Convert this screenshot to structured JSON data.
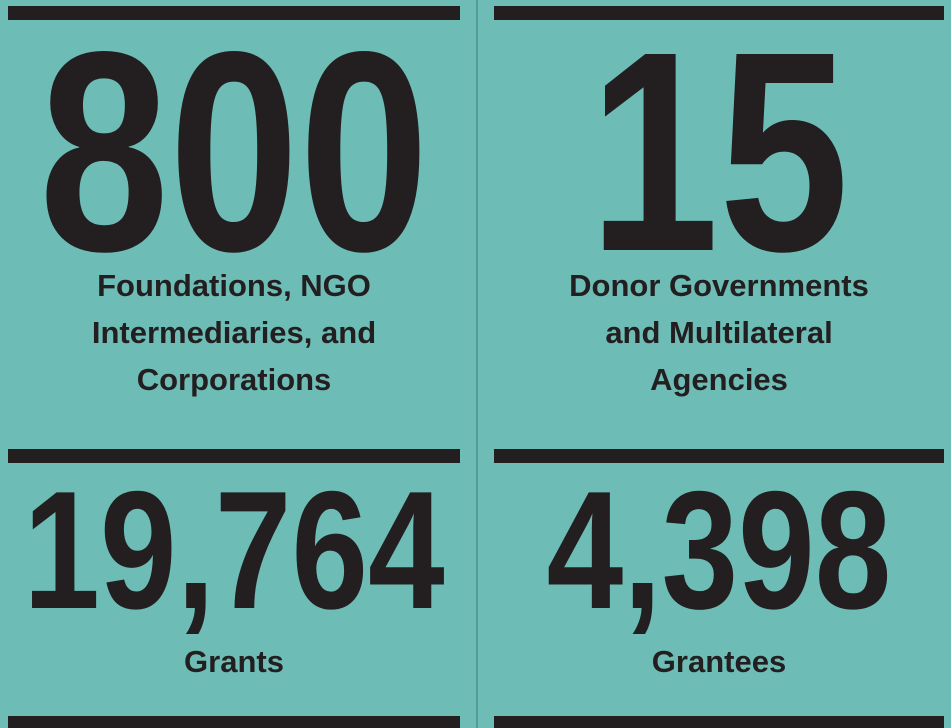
{
  "stats": [
    {
      "value": "800",
      "label": [
        "Foundations, NGO",
        "Intermediaries, and",
        "Corporations"
      ]
    },
    {
      "value": "15",
      "label": [
        "Donor Governments",
        "and Multilateral",
        "Agencies"
      ]
    },
    {
      "value": "19,764",
      "label": [
        "Grants"
      ]
    },
    {
      "value": "4,398",
      "label": [
        "Grantees"
      ]
    }
  ]
}
